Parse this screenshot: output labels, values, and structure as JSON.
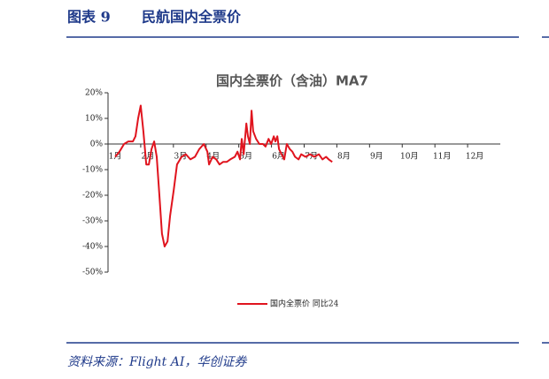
{
  "header": {
    "figure_label": "图表 9",
    "title": "民航国内全票价"
  },
  "source": "资料来源：Flight AI，华创证券",
  "chart_data": {
    "type": "line",
    "title": "国内全票价（含油）MA7",
    "xlim": [
      1,
      13
    ],
    "xticks": [
      {
        "value": 1,
        "label": "1月"
      },
      {
        "value": 2,
        "label": "2月"
      },
      {
        "value": 3,
        "label": "3月"
      },
      {
        "value": 4,
        "label": "4月"
      },
      {
        "value": 5,
        "label": "5月"
      },
      {
        "value": 6,
        "label": "6月"
      },
      {
        "value": 7,
        "label": "7月"
      },
      {
        "value": 8,
        "label": "8月"
      },
      {
        "value": 9,
        "label": "9月"
      },
      {
        "value": 10,
        "label": "10月"
      },
      {
        "value": 11,
        "label": "11月"
      },
      {
        "value": 12,
        "label": "12月"
      }
    ],
    "ylim": [
      -50,
      20
    ],
    "yticks": [
      {
        "value": 20,
        "label": "20%"
      },
      {
        "value": 10,
        "label": "10%"
      },
      {
        "value": 0,
        "label": "0%"
      },
      {
        "value": -10,
        "label": "-10%"
      },
      {
        "value": -20,
        "label": "-20%"
      },
      {
        "value": -30,
        "label": "-30%"
      },
      {
        "value": -40,
        "label": "-40%"
      },
      {
        "value": -50,
        "label": "-50%"
      }
    ],
    "x": [
      1.22,
      1.35,
      1.49,
      1.62,
      1.76,
      1.84,
      1.92,
      2.0,
      2.08,
      2.17,
      2.25,
      2.33,
      2.41,
      2.49,
      2.57,
      2.65,
      2.73,
      2.82,
      2.9,
      3.01,
      3.11,
      3.25,
      3.38,
      3.52,
      3.66,
      3.79,
      3.93,
      4.04,
      4.09,
      4.2,
      4.31,
      4.41,
      4.52,
      4.63,
      4.74,
      4.88,
      4.96,
      5.04,
      5.09,
      5.15,
      5.23,
      5.28,
      5.34,
      5.39,
      5.44,
      5.53,
      5.63,
      5.74,
      5.82,
      5.91,
      5.99,
      6.07,
      6.12,
      6.18,
      6.23,
      6.31,
      6.39,
      6.47,
      6.56,
      6.64,
      6.72,
      6.83,
      6.91,
      7.04,
      7.18,
      7.31,
      7.45,
      7.56,
      7.67,
      7.75,
      7.86
    ],
    "series": [
      {
        "name": "国内全票价 同比24",
        "color": "#e0141e",
        "values": [
          -5,
          -3,
          0,
          1,
          1,
          3,
          10,
          15,
          5,
          -8,
          -8,
          -2,
          1,
          -5,
          -20,
          -35,
          -40,
          -38,
          -28,
          -18,
          -8,
          -5,
          -4,
          -6,
          -5,
          -2,
          0,
          -3,
          -8,
          -5,
          -6,
          -8,
          -7,
          -7,
          -6,
          -5,
          -3,
          -6,
          2,
          -4,
          8,
          3,
          0,
          13,
          5,
          2,
          0,
          0,
          -1,
          2,
          0,
          3,
          1,
          3,
          -2,
          -4,
          -6,
          0,
          -2,
          -3,
          -5,
          -6,
          -4,
          -5,
          -4,
          -5,
          -4,
          -6,
          -5,
          -6,
          -7
        ]
      }
    ]
  }
}
